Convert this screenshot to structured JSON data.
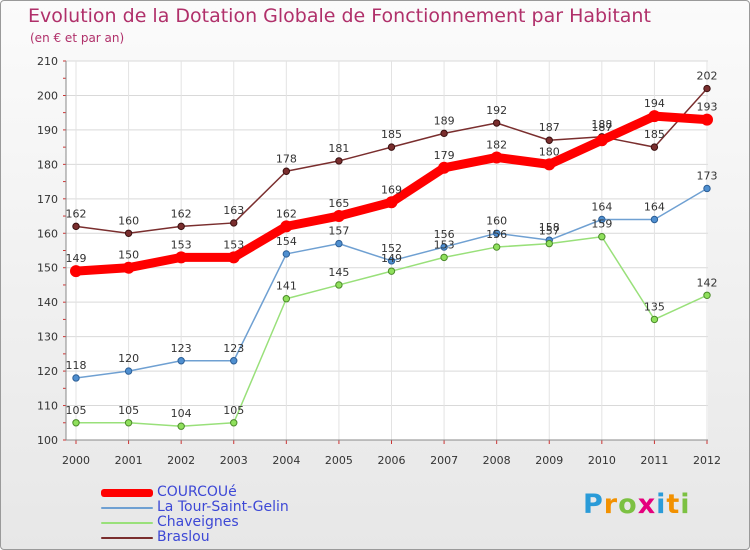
{
  "chart_data": {
    "type": "line",
    "title": "Evolution de la Dotation Globale de Fonctionnement par Habitant",
    "subtitle": "(en € et par an)",
    "x": [
      "2000",
      "2001",
      "2002",
      "2003",
      "2004",
      "2005",
      "2006",
      "2007",
      "2008",
      "2009",
      "2010",
      "2011",
      "2012"
    ],
    "ylim": [
      100,
      210
    ],
    "yticks": [
      100,
      110,
      120,
      130,
      140,
      150,
      160,
      170,
      180,
      190,
      200,
      210
    ],
    "grid": true,
    "legend_position": "bottom-left",
    "series": [
      {
        "name": "COURCOUé",
        "color": "#ff0000",
        "values": [
          149,
          150,
          153,
          153,
          162,
          165,
          169,
          179,
          182,
          180,
          187,
          194,
          193
        ]
      },
      {
        "name": "La Tour-Saint-Gelin",
        "color": "#6fa0d2",
        "values": [
          118,
          120,
          123,
          123,
          154,
          157,
          152,
          156,
          160,
          158,
          164,
          164,
          173
        ]
      },
      {
        "name": "Chaveignes",
        "color": "#99e07a",
        "values": [
          105,
          105,
          104,
          105,
          141,
          145,
          149,
          153,
          156,
          157,
          159,
          135,
          142
        ]
      },
      {
        "name": "Braslou",
        "color": "#7a2e2e",
        "values": [
          162,
          160,
          162,
          163,
          178,
          181,
          185,
          189,
          192,
          187,
          188,
          185,
          202
        ]
      }
    ]
  },
  "logo": {
    "letters": [
      "P",
      "r",
      "o",
      "x",
      "i",
      "t",
      "i"
    ],
    "colors": [
      "#2a9bd8",
      "#f29100",
      "#7cc142",
      "#e5007d",
      "#2a9bd8",
      "#f29100",
      "#7cc142"
    ]
  }
}
